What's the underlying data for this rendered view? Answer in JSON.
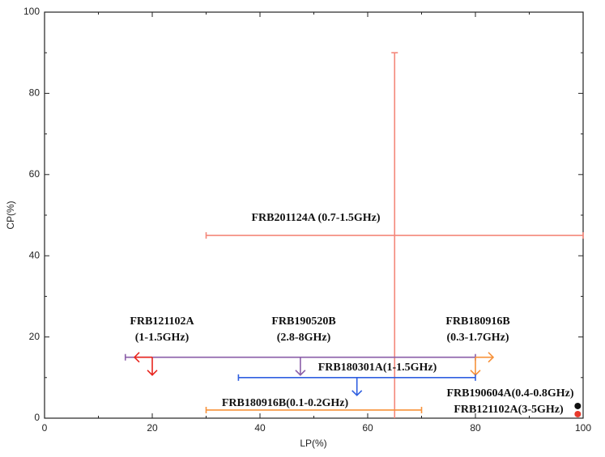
{
  "chart_data": {
    "type": "errorbar",
    "xlabel": "LP(%)",
    "ylabel": "CP(%)",
    "xlim": [
      0,
      100
    ],
    "ylim": [
      0,
      100
    ],
    "xticks": [
      0,
      20,
      40,
      60,
      80,
      100
    ],
    "yticks": [
      0,
      20,
      40,
      60,
      80,
      100
    ],
    "grid": false,
    "series": [
      {
        "name": [
          "FRB201124A (0.7-1.5GHz)"
        ],
        "color": "#f4877a",
        "x": 65,
        "y": 45,
        "x_low": 30,
        "x_high": 100,
        "y_low": 0,
        "y_high": 90
      },
      {
        "name": [
          "FRB190520B",
          "(2.8-8GHz)"
        ],
        "color": "#8a5ea8",
        "x": 47.5,
        "y": 15,
        "x_low": 15,
        "x_high": 80,
        "y_arrow": "down"
      },
      {
        "name": [
          "FRB121102A",
          "(1-1.5GHz)"
        ],
        "color": "#e8261f",
        "x": 20,
        "y": 15,
        "x_arrow": "left",
        "y_arrow": "down"
      },
      {
        "name": [
          "FRB180916B",
          "(0.3-1.7GHz)"
        ],
        "color": "#f7923a",
        "x": 80,
        "y": 15,
        "x_arrow": "right",
        "y_arrow": "down"
      },
      {
        "name": [
          "FRB180301A(1-1.5GHz)"
        ],
        "color": "#2f5fe0",
        "x": 58,
        "y": 10,
        "x_low": 36,
        "x_high": 80,
        "y_arrow": "down"
      },
      {
        "name": [
          "FRB180916B(0.1-0.2GHz)"
        ],
        "color": "#f7923a",
        "x": 50,
        "y": 2,
        "x_low": 30,
        "x_high": 70
      },
      {
        "name": [
          "FRB190604A(0.4-0.8GHz)"
        ],
        "color": "#111111",
        "x": 99,
        "y": 3,
        "marker": true
      },
      {
        "name": [
          "FRB121102A(3-5GHz)"
        ],
        "color": "#e8392c",
        "x": 99,
        "y": 1,
        "marker": true
      }
    ]
  }
}
